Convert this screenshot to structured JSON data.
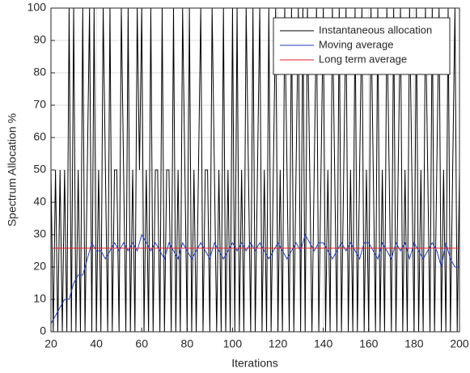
{
  "chart_data": {
    "type": "line",
    "xlabel": "Iterations",
    "ylabel": "Spectrum Allocation %",
    "xlim": [
      20,
      200
    ],
    "xticks": [
      20,
      40,
      60,
      80,
      100,
      120,
      140,
      160,
      180,
      200
    ],
    "ylim": [
      0,
      100
    ],
    "yticks": [
      0,
      10,
      20,
      30,
      40,
      50,
      60,
      70,
      80,
      90,
      100
    ],
    "grid": true,
    "legend": "upper right",
    "series": [
      {
        "name": "Instantaneous allocation",
        "color": "#000000",
        "x": [
          20,
          21,
          22,
          23,
          24,
          25,
          26,
          27,
          28,
          29,
          30,
          31,
          32,
          33,
          34,
          35,
          36,
          37,
          38,
          39,
          40,
          41,
          42,
          43,
          44,
          45,
          46,
          47,
          48,
          49,
          50,
          51,
          52,
          53,
          54,
          55,
          56,
          57,
          58,
          59,
          60,
          61,
          62,
          63,
          64,
          65,
          66,
          67,
          68,
          69,
          70,
          71,
          72,
          73,
          74,
          75,
          76,
          77,
          78,
          79,
          80,
          81,
          82,
          83,
          84,
          85,
          86,
          87,
          88,
          89,
          90,
          91,
          92,
          93,
          94,
          95,
          96,
          97,
          98,
          99,
          100,
          101,
          102,
          103,
          104,
          105,
          106,
          107,
          108,
          109,
          110,
          111,
          112,
          113,
          114,
          115,
          116,
          117,
          118,
          119,
          120,
          121,
          122,
          123,
          124,
          125,
          126,
          127,
          128,
          129,
          130,
          131,
          132,
          133,
          134,
          135,
          136,
          137,
          138,
          139,
          140,
          141,
          142,
          143,
          144,
          145,
          146,
          147,
          148,
          149,
          150,
          151,
          152,
          153,
          154,
          155,
          156,
          157,
          158,
          159,
          160,
          161,
          162,
          163,
          164,
          165,
          166,
          167,
          168,
          169,
          170,
          171,
          172,
          173,
          174,
          175,
          176,
          177,
          178,
          179,
          180,
          181,
          182,
          183,
          184,
          185,
          186,
          187,
          188,
          189,
          190,
          191,
          192,
          193,
          194,
          195,
          196,
          197,
          198,
          199,
          200
        ],
        "values": [
          50,
          0,
          50,
          0,
          50,
          0,
          50,
          0,
          100,
          0,
          100,
          0,
          50,
          0,
          100,
          0,
          50,
          100,
          0,
          100,
          0,
          50,
          0,
          100,
          50,
          0,
          100,
          0,
          50,
          50,
          0,
          100,
          50,
          0,
          100,
          0,
          50,
          0,
          100,
          50,
          100,
          0,
          50,
          0,
          100,
          0,
          50,
          50,
          0,
          100,
          0,
          50,
          50,
          0,
          100,
          0,
          50,
          0,
          100,
          50,
          0,
          100,
          0,
          50,
          0,
          50,
          100,
          0,
          50,
          50,
          0,
          100,
          50,
          0,
          50,
          0,
          100,
          0,
          50,
          0,
          100,
          0,
          100,
          0,
          50,
          0,
          100,
          50,
          0,
          100,
          0,
          50,
          100,
          0,
          50,
          0,
          100,
          0,
          50,
          100,
          0,
          50,
          0,
          100,
          50,
          0,
          100,
          0,
          50,
          100,
          0,
          100,
          0,
          100,
          50,
          0,
          50,
          100,
          0,
          50,
          100,
          0,
          50,
          0,
          100,
          50,
          0,
          100,
          0,
          50,
          100,
          0,
          50,
          0,
          100,
          0,
          50,
          100,
          0,
          50,
          0,
          100,
          50,
          0,
          100,
          0,
          50,
          0,
          100,
          50,
          0,
          100,
          0,
          50,
          100,
          0,
          50,
          0,
          100,
          50,
          0,
          100,
          0,
          50,
          0,
          100,
          50,
          0,
          100,
          0,
          50,
          100,
          0,
          50,
          0,
          100,
          0,
          50,
          100,
          0,
          50
        ]
      },
      {
        "name": "Moving average",
        "color": "#1f3fbf",
        "x": [
          20,
          22,
          24,
          26,
          28,
          30,
          32,
          34,
          36,
          38,
          40,
          42,
          44,
          46,
          48,
          50,
          52,
          54,
          56,
          58,
          60,
          62,
          64,
          66,
          68,
          70,
          72,
          74,
          76,
          78,
          80,
          82,
          84,
          86,
          88,
          90,
          92,
          94,
          96,
          98,
          100,
          102,
          104,
          106,
          108,
          110,
          112,
          114,
          116,
          118,
          120,
          122,
          124,
          126,
          128,
          130,
          132,
          134,
          136,
          138,
          140,
          142,
          144,
          146,
          148,
          150,
          152,
          154,
          156,
          158,
          160,
          162,
          164,
          166,
          168,
          170,
          172,
          174,
          176,
          178,
          180,
          182,
          184,
          186,
          188,
          190,
          192,
          194,
          196,
          198,
          200
        ],
        "values": [
          2.5,
          5,
          7.5,
          10,
          10,
          15,
          17.5,
          17.5,
          22.5,
          27.5,
          25,
          25,
          22.5,
          25,
          27.5,
          25,
          27.5,
          25,
          27.5,
          25,
          30,
          27.5,
          25,
          27.5,
          25,
          22.5,
          27.5,
          25,
          22.5,
          27.5,
          25,
          22.5,
          25,
          27.5,
          25,
          22.5,
          27.5,
          25,
          22.5,
          25,
          27.5,
          25,
          27.5,
          25,
          27.5,
          25,
          27.5,
          25,
          22.5,
          25,
          27.5,
          25,
          22.5,
          25,
          27.5,
          25,
          30,
          27.5,
          25,
          27.5,
          27.5,
          25,
          22.5,
          25,
          27.5,
          25,
          27.5,
          25,
          22.5,
          27.5,
          27.5,
          25,
          22.5,
          27.5,
          25,
          22.5,
          27.5,
          25,
          27.5,
          22.5,
          27.5,
          25,
          22.5,
          25,
          27.5,
          25,
          20,
          27.5,
          22.5,
          20,
          20
        ]
      },
      {
        "name": "Long term average",
        "color": "#e8202a",
        "x": [
          20,
          200
        ],
        "values": [
          25.8,
          25.8
        ]
      }
    ]
  }
}
